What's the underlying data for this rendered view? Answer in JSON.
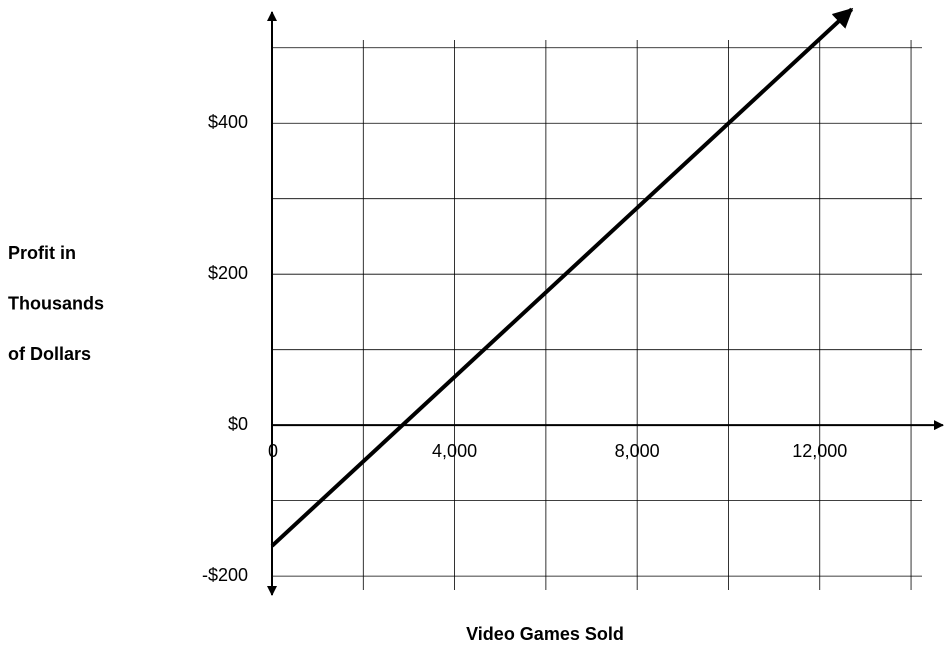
{
  "chart_data": {
    "type": "line",
    "x_label": "Video Games Sold",
    "y_label": [
      "Profit in",
      "Thousands",
      "of Dollars"
    ],
    "x": [
      0,
      12700
    ],
    "series": [
      {
        "color": "#000000",
        "values": [
          -160,
          551
        ]
      }
    ],
    "xlim": [
      0,
      14700
    ],
    "ylim": [
      -225,
      550
    ],
    "xticks": [
      0,
      {
        "value": 4000,
        "label": "4,000"
      },
      {
        "value": 8000,
        "label": "8,000"
      },
      {
        "value": 12000,
        "label": "12,000"
      }
    ],
    "yticks": [
      {
        "value": -200,
        "label": "-$200"
      },
      {
        "value": 0,
        "label": "$0"
      },
      {
        "value": 200,
        "label": "$200"
      },
      {
        "value": 400,
        "label": "$400"
      }
    ],
    "xgrid": [
      2000,
      4000,
      6000,
      8000,
      10000,
      12000,
      14000
    ],
    "ygrid": [
      -200,
      -100,
      100,
      200,
      300,
      400,
      500
    ],
    "grid": true
  }
}
